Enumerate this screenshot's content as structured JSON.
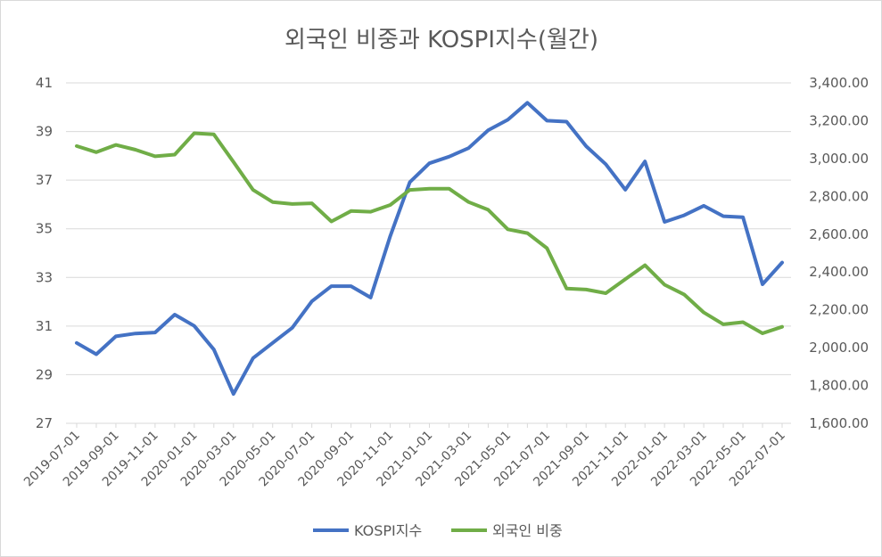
{
  "chart_data": {
    "type": "line",
    "title": "외국인 비중과 KOSPI지수(월간)",
    "x_tick_labels": [
      "2019-07-01",
      "2019-09-01",
      "2019-11-01",
      "2020-01-01",
      "2020-03-01",
      "2020-05-01",
      "2020-07-01",
      "2020-09-01",
      "2020-11-01",
      "2021-01-01",
      "2021-03-01",
      "2021-05-01",
      "2021-07-01",
      "2021-09-01",
      "2021-11-01",
      "2022-01-01",
      "2022-03-01",
      "2022-05-01",
      "2022-07-01"
    ],
    "x": [
      "2019-07-01",
      "2019-08-01",
      "2019-09-01",
      "2019-10-01",
      "2019-11-01",
      "2019-12-01",
      "2020-01-01",
      "2020-02-01",
      "2020-03-01",
      "2020-04-01",
      "2020-05-01",
      "2020-06-01",
      "2020-07-01",
      "2020-08-01",
      "2020-09-01",
      "2020-10-01",
      "2020-11-01",
      "2020-12-01",
      "2021-01-01",
      "2021-02-01",
      "2021-03-01",
      "2021-04-01",
      "2021-05-01",
      "2021-06-01",
      "2021-07-01",
      "2021-08-01",
      "2021-09-01",
      "2021-10-01",
      "2021-11-01",
      "2021-12-01",
      "2022-01-01",
      "2022-02-01",
      "2022-03-01",
      "2022-04-01",
      "2022-05-01",
      "2022-06-01",
      "2022-07-01"
    ],
    "left_axis": {
      "ylim": [
        27,
        41
      ],
      "ticks": [
        "41",
        "39",
        "37",
        "35",
        "33",
        "31",
        "29",
        "27"
      ]
    },
    "right_axis": {
      "ylim": [
        1600,
        3400
      ],
      "ticks": [
        "3,400.00",
        "3,200.00",
        "3,000.00",
        "2,800.00",
        "2,600.00",
        "2,400.00",
        "2,200.00",
        "2,000.00",
        "1,800.00",
        "1,600.00"
      ]
    },
    "grid": true,
    "legend_position": "bottom",
    "series": [
      {
        "name": "KOSPI지수",
        "axis": "right",
        "color": "#4472C4",
        "values": [
          2025,
          1965,
          2060,
          2075,
          2080,
          2175,
          2115,
          1990,
          1755,
          1945,
          2025,
          2105,
          2245,
          2325,
          2325,
          2265,
          2590,
          2875,
          2975,
          3010,
          3055,
          3150,
          3205,
          3295,
          3200,
          3195,
          3065,
          2970,
          2835,
          2985,
          2665,
          2700,
          2750,
          2695,
          2690,
          2335,
          2450
        ]
      },
      {
        "name": "외국인 비중",
        "axis": "left",
        "color": "#70AD47",
        "values": [
          38.4,
          38.15,
          38.45,
          38.25,
          37.98,
          38.05,
          38.93,
          38.88,
          37.75,
          36.6,
          36.1,
          36.02,
          36.05,
          35.3,
          35.73,
          35.7,
          35.98,
          36.6,
          36.65,
          36.65,
          36.1,
          35.78,
          34.98,
          34.82,
          34.2,
          32.54,
          32.5,
          32.35,
          32.93,
          33.5,
          32.7,
          32.3,
          31.56,
          31.07,
          31.16,
          30.7,
          30.97
        ]
      }
    ]
  }
}
